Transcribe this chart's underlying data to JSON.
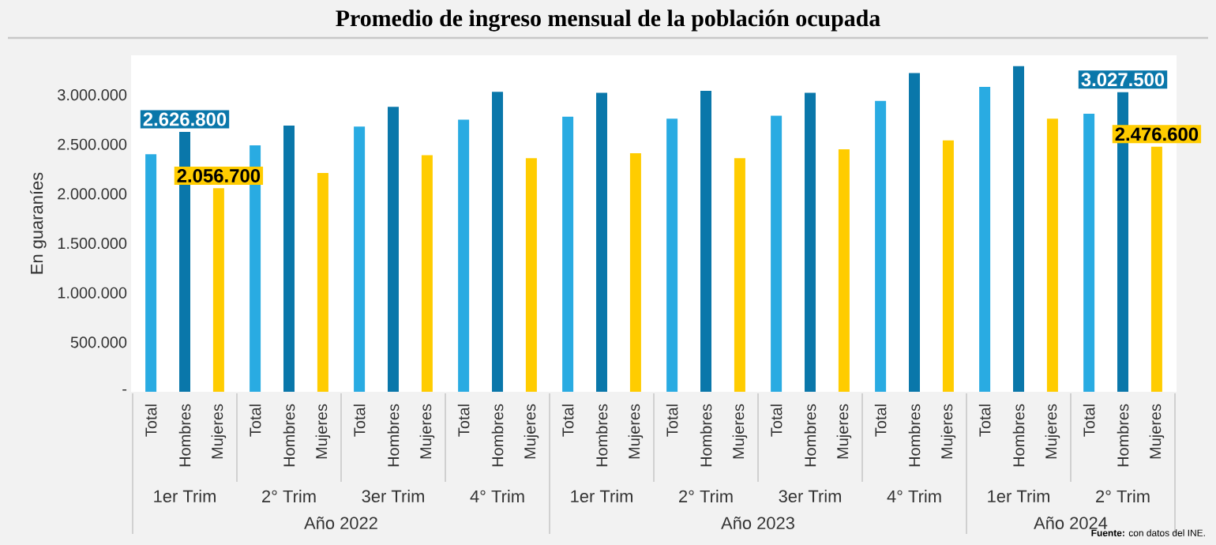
{
  "chart_data": {
    "type": "bar",
    "title": "Promedio de ingreso mensual de la población ocupada",
    "ylabel": "En guaraníes",
    "categories": [
      "1er Trim",
      "2° Trim",
      "3er Trim",
      "4° Trim",
      "1er Trim",
      "2° Trim",
      "3er Trim",
      "4° Trim",
      "1er Trim",
      "2° Trim"
    ],
    "series": [
      {
        "name": "Total",
        "color": "#29abe2",
        "values": [
          2400000,
          2490000,
          2680000,
          2750000,
          2780000,
          2760000,
          2790000,
          2940000,
          3080000,
          2810000
        ]
      },
      {
        "name": "Hombres",
        "color": "#0a77aa",
        "values": [
          2626800,
          2690000,
          2880000,
          3030000,
          3020000,
          3040000,
          3020000,
          3220000,
          3290000,
          3027500
        ],
        "value_labels": [
          "2.626.800",
          null,
          null,
          null,
          null,
          null,
          null,
          null,
          null,
          "3.027.500"
        ]
      },
      {
        "name": "Mujeres",
        "color": "#ffcc00",
        "values": [
          2056700,
          2210000,
          2390000,
          2360000,
          2410000,
          2360000,
          2450000,
          2540000,
          2760000,
          2476600
        ],
        "value_labels": [
          "2.056.700",
          null,
          null,
          null,
          null,
          null,
          null,
          null,
          null,
          "2.476.600"
        ]
      }
    ],
    "ylim": [
      0,
      3400000
    ],
    "yticks": [
      {
        "value": 0,
        "label": "-"
      },
      {
        "value": 500000,
        "label": "500.000"
      },
      {
        "value": 1000000,
        "label": "1.000.000"
      },
      {
        "value": 1500000,
        "label": "1.500.000"
      },
      {
        "value": 2000000,
        "label": "2.000.000"
      },
      {
        "value": 2500000,
        "label": "2.500.000"
      },
      {
        "value": 3000000,
        "label": "3.000.000"
      }
    ],
    "annotations": [
      "Año 2022",
      "Año 2023",
      "Año 2024",
      "**Fuente:** con datos del INE."
    ]
  }
}
